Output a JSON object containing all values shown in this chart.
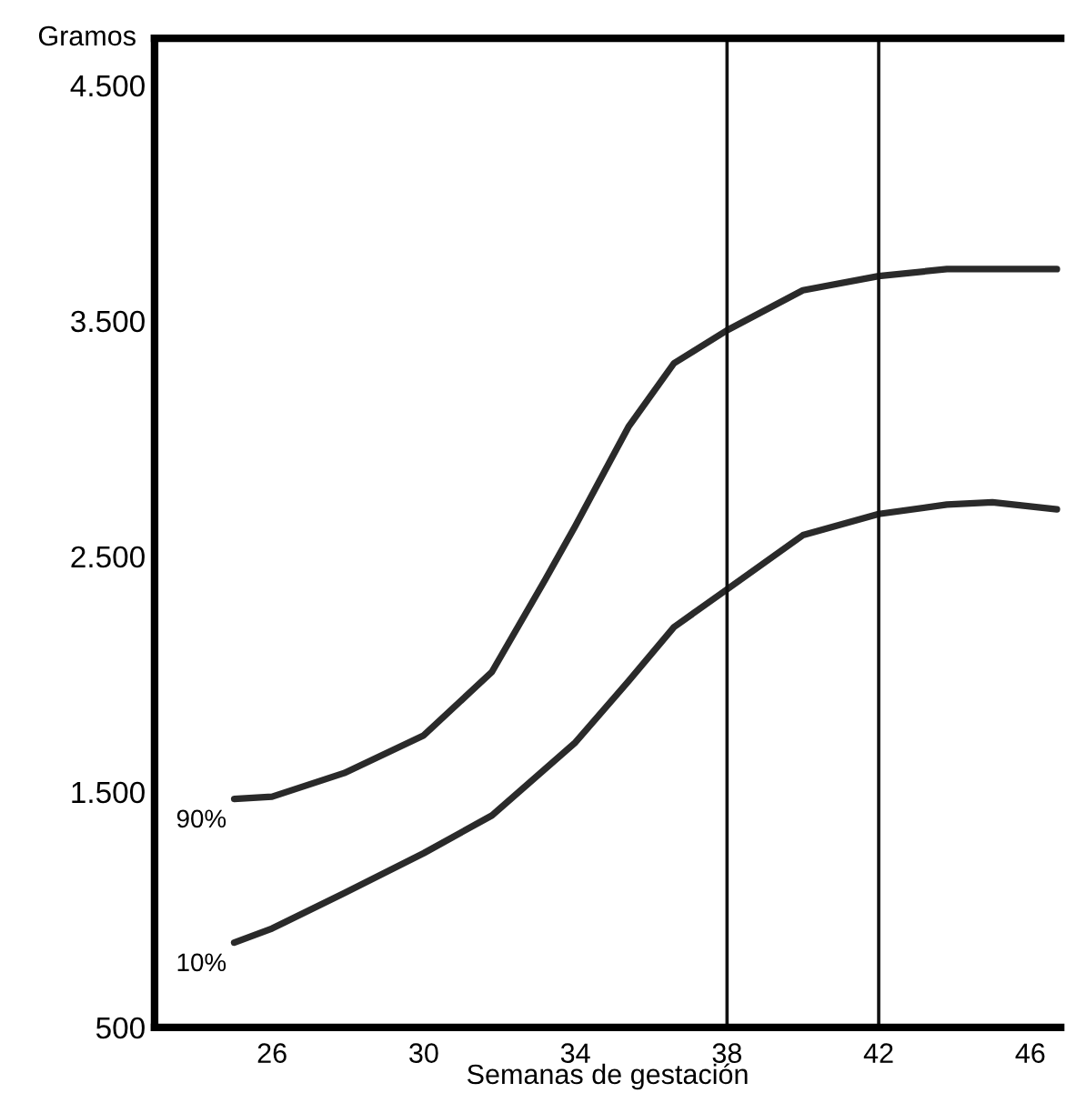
{
  "chart_data": {
    "type": "line",
    "xlabel": "Semanas de gestación",
    "ylabel": "Gramos",
    "xlim": [
      22.9,
      46.8
    ],
    "xticks": [
      26,
      30,
      34,
      38,
      42,
      46
    ],
    "ylim": [
      500,
      4700
    ],
    "yticks": [
      {
        "value": 4500,
        "label": "4.500"
      },
      {
        "value": 3500,
        "label": "3.500"
      },
      {
        "value": 2500,
        "label": "2.500"
      },
      {
        "value": 1500,
        "label": "1.500"
      },
      500
    ],
    "grid": false,
    "legend": false,
    "marker": "none",
    "line_style": "solid",
    "ref_lines": [
      {
        "axis": "x",
        "value": 38,
        "color": "#111111"
      },
      {
        "axis": "x",
        "value": 42,
        "color": "#111111"
      }
    ],
    "series": [
      {
        "name": "90%",
        "color": "#2a2a2a",
        "x": [
          25.0,
          26,
          27.9,
          30,
          31.8,
          33.2,
          34,
          35.4,
          36.6,
          38,
          40,
          42,
          43.8,
          46.7
        ],
        "values": [
          1470,
          1480,
          1580,
          1740,
          2010,
          2400,
          2630,
          3050,
          3320,
          3460,
          3630,
          3690,
          3720,
          3720
        ]
      },
      {
        "name": "10%",
        "color": "#2a2a2a",
        "x": [
          25.0,
          26,
          27.9,
          30,
          31.8,
          34,
          35.4,
          36.6,
          38,
          40,
          42,
          43.8,
          45,
          46.7
        ],
        "values": [
          860,
          920,
          1070,
          1240,
          1400,
          1710,
          1970,
          2200,
          2360,
          2590,
          2680,
          2720,
          2730,
          2700
        ]
      }
    ]
  }
}
